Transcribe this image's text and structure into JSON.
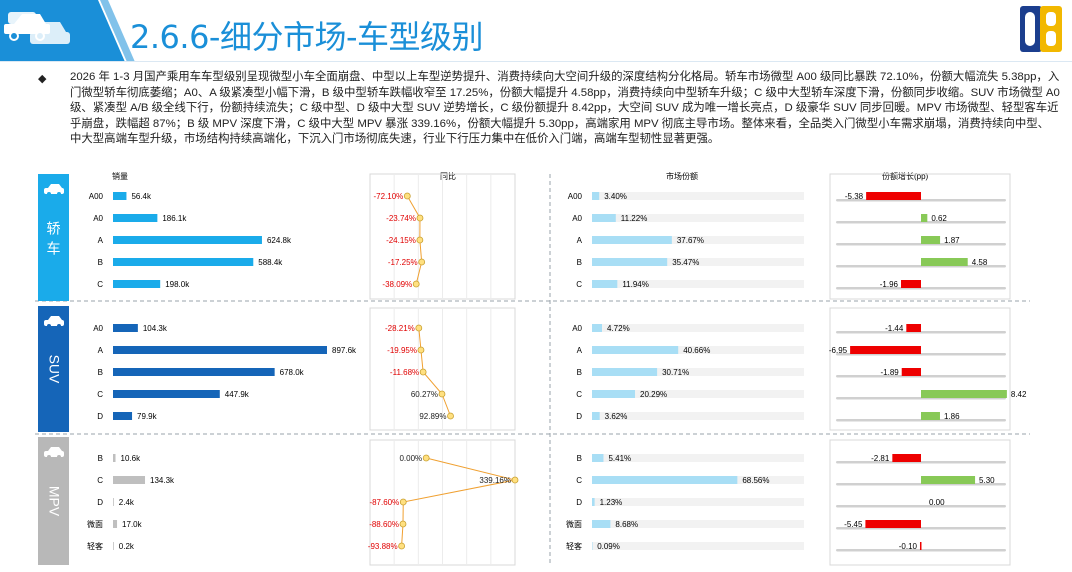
{
  "page": {
    "title": "2.6.6-细分市场-车型级别",
    "bullet": "◆",
    "summary": "2026 年 1-3 月国产乘用车车型级别呈现微型小车全面崩盘、中型以上车型逆势提升、消费持续向大空间升级的深度结构分化格局。轿车市场微型 A00 级同比暴跌 72.10%，份额大幅流失 5.38pp，入门微型轿车彻底萎缩；A0、A 级紧凑型小幅下滑，B 级中型轿车跌幅收窄至 17.25%，份额大幅提升 4.58pp，消费持续向中型轿车升级；C 级中大型轿车深度下滑，份额同步收缩。SUV 市场微型 A0 级、紧凑型 A/B 级全线下行，份额持续流失；C 级中型、D 级中大型 SUV 逆势增长，C 级份额提升 8.42pp，大空间 SUV 成为唯一增长亮点，D 级豪华 SUV 同步回暖。MPV 市场微型、轻型客车近乎崩盘，跌幅超 87%；B 级 MPV 深度下滑，C 级中大型 MPV 暴涨 339.16%，份额大幅提升 5.30pp，高端家用 MPV 彻底主导市场。整体来看，全品类入门微型小车需求崩塌，消费持续向中型、中大型高端车型升级，市场结构持续高端化，下沉入门市场彻底失速，行业下行压力集中在低价入门端，高端车型韧性显著更强。"
  },
  "logo_text": "DB",
  "chart_data": {
    "type": "bar",
    "columns": {
      "sales": "销量",
      "yoy": "同比",
      "share": "市场份额",
      "share_change": "份额增长(pp)"
    },
    "segments": [
      {
        "name": "轿车",
        "name_chars": [
          "轿",
          "车"
        ],
        "color": "#1aabea",
        "band": "#1aabea",
        "icon": "sedan-icon",
        "categories": [
          "A00",
          "A0",
          "A",
          "B",
          "C"
        ],
        "sales_labels": [
          "56.4k",
          "186.1k",
          "624.8k",
          "588.4k",
          "198.0k"
        ],
        "sales_values": [
          56.4,
          186.1,
          624.8,
          588.4,
          198.0
        ],
        "yoy": [
          -72.1,
          -23.74,
          -24.15,
          -17.25,
          -38.09
        ],
        "yoy_labels": [
          "-72.10%",
          "-23.74%",
          "-24.15%",
          "-17.25%",
          "-38.09%"
        ],
        "share": [
          3.4,
          11.22,
          37.67,
          35.47,
          11.94
        ],
        "share_labels": [
          "3.40%",
          "11.22%",
          "37.67%",
          "35.47%",
          "11.94%"
        ],
        "share_change": [
          -5.38,
          0.62,
          1.87,
          4.58,
          -1.96
        ],
        "share_change_labels": [
          "-5.38",
          "0.62",
          "1.87",
          "4.58",
          "-1.96"
        ]
      },
      {
        "name": "SUV",
        "name_chars": [
          "SUV"
        ],
        "color": "#1565b8",
        "band": "#1565b8",
        "icon": "suv-icon",
        "categories": [
          "A0",
          "A",
          "B",
          "C",
          "D"
        ],
        "sales_labels": [
          "104.3k",
          "897.6k",
          "678.0k",
          "447.9k",
          "79.9k"
        ],
        "sales_values": [
          104.3,
          897.6,
          678.0,
          447.9,
          79.9
        ],
        "yoy": [
          -28.21,
          -19.95,
          -11.68,
          60.27,
          92.89
        ],
        "yoy_labels": [
          "-28.21%",
          "-19.95%",
          "-11.68%",
          "60.27%",
          "92.89%"
        ],
        "share": [
          4.72,
          40.66,
          30.71,
          20.29,
          3.62
        ],
        "share_labels": [
          "4.72%",
          "40.66%",
          "30.71%",
          "20.29%",
          "3.62%"
        ],
        "share_change": [
          -1.44,
          -6.95,
          -1.89,
          8.42,
          1.86
        ],
        "share_change_labels": [
          "-1.44",
          "-6.95",
          "-1.89",
          "8.42",
          "1.86"
        ]
      },
      {
        "name": "MPV",
        "name_chars": [
          "MPV"
        ],
        "color": "#bfbfbf",
        "band": "#b8b8b8",
        "icon": "mpv-icon",
        "categories": [
          "B",
          "C",
          "D",
          "微面",
          "轻客"
        ],
        "sales_labels": [
          "10.6k",
          "134.3k",
          "2.4k",
          "17.0k",
          "0.2k"
        ],
        "sales_values": [
          10.6,
          134.3,
          2.4,
          17.0,
          0.2
        ],
        "yoy": [
          0.0,
          339.16,
          -87.6,
          -88.6,
          -93.88
        ],
        "yoy_labels": [
          "0.00%",
          "339.16%",
          "-87.60%",
          "-88.60%",
          "-93.88%"
        ],
        "share": [
          5.41,
          68.56,
          1.23,
          8.68,
          0.09
        ],
        "share_labels": [
          "5.41%",
          "68.56%",
          "1.23%",
          "8.68%",
          "0.09%"
        ],
        "share_change": [
          -2.81,
          5.3,
          0.0,
          -5.45,
          -0.1
        ],
        "share_change_labels": [
          "-2.81",
          "5.30",
          "0.00",
          "-5.45",
          "-0.10"
        ]
      }
    ],
    "colors": {
      "share_bar": "#a8def5",
      "negative": "#ee0000",
      "positive": "#88c957",
      "line": "#f0a030",
      "marker": "#ffe080",
      "neg_label": "#e00000"
    }
  }
}
